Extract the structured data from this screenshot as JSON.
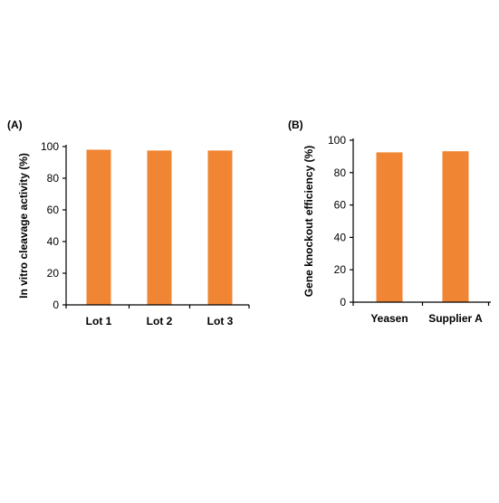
{
  "bar_color": "#f08633",
  "chart_data": [
    {
      "type": "bar",
      "panel_label": "(A)",
      "title": "",
      "xlabel": "",
      "ylabel": "In vitro cleavage activity (%)",
      "ylim": [
        0,
        100
      ],
      "yticks": [
        0,
        20,
        40,
        60,
        80,
        100
      ],
      "categories": [
        "Lot 1",
        "Lot 2",
        "Lot 3"
      ],
      "values": [
        98,
        97.5,
        97.5
      ],
      "grid": false,
      "legend": "none"
    },
    {
      "type": "bar",
      "panel_label": "(B)",
      "title": "",
      "xlabel": "",
      "ylabel": "Gene knockout efficiency (%)",
      "ylim": [
        0,
        100
      ],
      "yticks": [
        0,
        20,
        40,
        60,
        80,
        100
      ],
      "categories": [
        "Yeasen",
        "Supplier A"
      ],
      "values": [
        92.5,
        93.2
      ],
      "grid": false,
      "legend": "none"
    }
  ]
}
